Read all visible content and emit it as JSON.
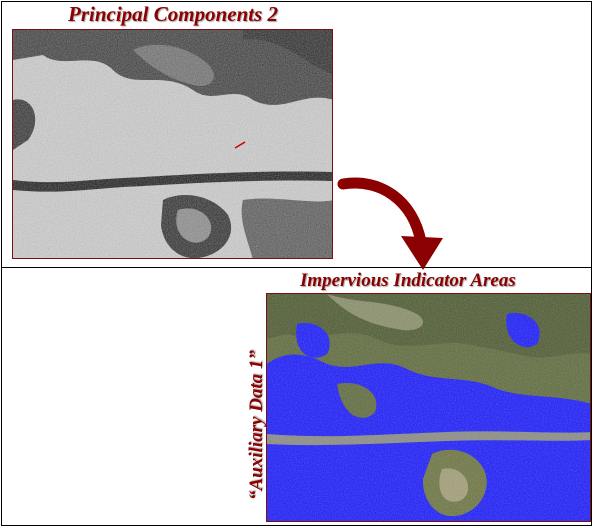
{
  "figure": {
    "top_image": {
      "caption": "Principal Components 2",
      "icon": "grayscale-satellite-image"
    },
    "bottom_image": {
      "caption": "Impervious Indicator Areas",
      "side_label": "“Auxiliary Data 1”",
      "icon": "classified-satellite-image"
    },
    "arrow": {
      "icon": "curved-arrow-icon",
      "color": "#8b0000"
    },
    "colors": {
      "caption": "#8b0000",
      "impervious": "#1a1aff",
      "vegetation": "#5e6b3c"
    }
  }
}
